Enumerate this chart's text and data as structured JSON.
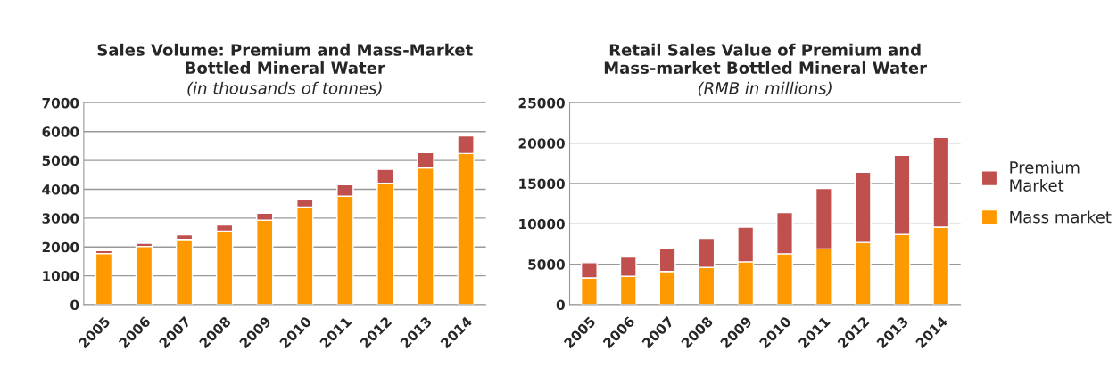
{
  "chart_data": [
    {
      "type": "bar",
      "title": "Sales Volume: Premium and Mass-Market Bottled Mineral Water",
      "subtitle": "(in thousands of tonnes)",
      "stacked": true,
      "grid": "y",
      "legend": false,
      "categories": [
        "2005",
        "2006",
        "2007",
        "2008",
        "2009",
        "2010",
        "2011",
        "2012",
        "2013",
        "2014"
      ],
      "series": [
        {
          "color": "#ff9900",
          "values": [
            1770,
            2020,
            2260,
            2550,
            2930,
            3380,
            3760,
            4210,
            4740,
            5240
          ]
        },
        {
          "color": "#c0504d",
          "values": [
            100,
            110,
            160,
            210,
            240,
            280,
            400,
            480,
            530,
            610
          ]
        }
      ],
      "ylim": [
        0,
        7000
      ],
      "yticks": [
        0,
        1000,
        2000,
        3000,
        4000,
        5000,
        6000,
        7000
      ]
    },
    {
      "type": "bar",
      "title": "Retail Sales Value of Premium and Mass-market Bottled Mineral Water",
      "subtitle": "(RMB in millions)",
      "stacked": true,
      "grid": "y",
      "legend": "right",
      "categories": [
        "2005",
        "2006",
        "2007",
        "2008",
        "2009",
        "2010",
        "2011",
        "2012",
        "2013",
        "2014"
      ],
      "series": [
        {
          "name": "Mass market",
          "color": "#ff9900",
          "values": [
            3300,
            3500,
            4100,
            4600,
            5300,
            6300,
            6900,
            7700,
            8700,
            9600
          ]
        },
        {
          "name": "Premium Market",
          "color": "#c0504d",
          "values": [
            1900,
            2400,
            2800,
            3600,
            4300,
            5100,
            7500,
            8700,
            9800,
            11100
          ]
        }
      ],
      "ylim": [
        0,
        25000
      ],
      "yticks": [
        0,
        5000,
        10000,
        15000,
        20000,
        25000
      ]
    }
  ]
}
